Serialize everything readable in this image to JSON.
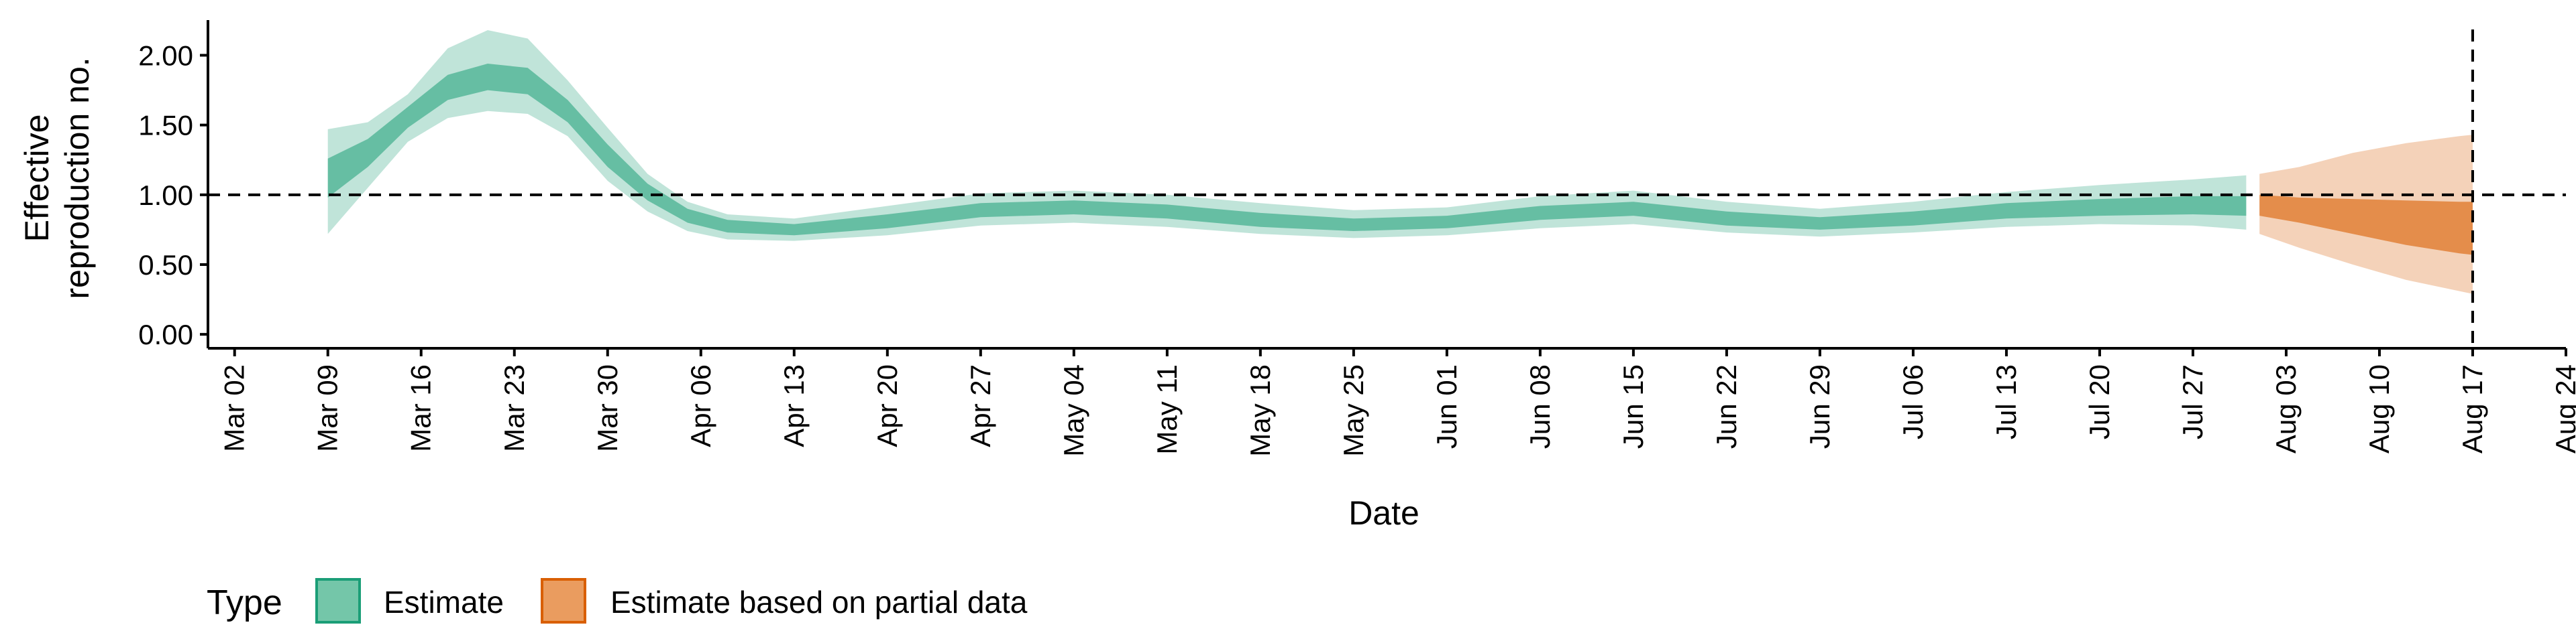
{
  "chart_data": {
    "type": "area",
    "xlabel": "Date",
    "ylabel_lines": [
      "Effective",
      "reproduction no."
    ],
    "x_range": [
      "2020-02-29",
      "2020-08-24"
    ],
    "ylim": [
      -0.1,
      2.3
    ],
    "y_ticks": [
      0,
      0.5,
      1,
      1.5,
      2
    ],
    "y_tick_labels": [
      "0.00",
      "0.50",
      "1.00",
      "1.50",
      "2.00"
    ],
    "x_ticks": [
      "2020-03-02",
      "2020-03-09",
      "2020-03-16",
      "2020-03-23",
      "2020-03-30",
      "2020-04-06",
      "2020-04-13",
      "2020-04-20",
      "2020-04-27",
      "2020-05-04",
      "2020-05-11",
      "2020-05-18",
      "2020-05-25",
      "2020-06-01",
      "2020-06-08",
      "2020-06-15",
      "2020-06-22",
      "2020-06-29",
      "2020-07-06",
      "2020-07-13",
      "2020-07-20",
      "2020-07-27",
      "2020-08-03",
      "2020-08-10",
      "2020-08-17",
      "2020-08-24"
    ],
    "x_tick_labels": [
      "Mar 02",
      "Mar 09",
      "Mar 16",
      "Mar 23",
      "Mar 30",
      "Apr 06",
      "Apr 13",
      "Apr 20",
      "Apr 27",
      "May 04",
      "May 11",
      "May 18",
      "May 25",
      "Jun 01",
      "Jun 08",
      "Jun 15",
      "Jun 22",
      "Jun 29",
      "Jul 06",
      "Jul 13",
      "Jul 20",
      "Jul 27",
      "Aug 03",
      "Aug 10",
      "Aug 17",
      "Aug 24"
    ],
    "reference_hline": 1.0,
    "reference_vline": "2020-08-17",
    "grid": false,
    "legend_placement": "bottom-left",
    "legend_title": "Type",
    "series": [
      {
        "name": "Estimate",
        "color_fill": "#1b9e77",
        "points": [
          {
            "x": "2020-03-09",
            "median": 1.1,
            "lo50": 0.98,
            "hi50": 1.26,
            "lo90": 0.72,
            "hi90": 1.47
          },
          {
            "x": "2020-03-12",
            "median": 1.3,
            "lo50": 1.2,
            "hi50": 1.4,
            "lo90": 1.05,
            "hi90": 1.52
          },
          {
            "x": "2020-03-15",
            "median": 1.55,
            "lo50": 1.48,
            "hi50": 1.63,
            "lo90": 1.38,
            "hi90": 1.72
          },
          {
            "x": "2020-03-18",
            "median": 1.76,
            "lo50": 1.68,
            "hi50": 1.86,
            "lo90": 1.55,
            "hi90": 2.05
          },
          {
            "x": "2020-03-21",
            "median": 1.85,
            "lo50": 1.75,
            "hi50": 1.94,
            "lo90": 1.6,
            "hi90": 2.18
          },
          {
            "x": "2020-03-24",
            "median": 1.82,
            "lo50": 1.72,
            "hi50": 1.91,
            "lo90": 1.58,
            "hi90": 2.12
          },
          {
            "x": "2020-03-27",
            "median": 1.6,
            "lo50": 1.52,
            "hi50": 1.68,
            "lo90": 1.42,
            "hi90": 1.82
          },
          {
            "x": "2020-03-30",
            "median": 1.28,
            "lo50": 1.2,
            "hi50": 1.36,
            "lo90": 1.1,
            "hi90": 1.48
          },
          {
            "x": "2020-04-02",
            "median": 1.02,
            "lo50": 0.96,
            "hi50": 1.08,
            "lo90": 0.88,
            "hi90": 1.15
          },
          {
            "x": "2020-04-05",
            "median": 0.85,
            "lo50": 0.8,
            "hi50": 0.9,
            "lo90": 0.74,
            "hi90": 0.95
          },
          {
            "x": "2020-04-08",
            "median": 0.77,
            "lo50": 0.73,
            "hi50": 0.82,
            "lo90": 0.68,
            "hi90": 0.86
          },
          {
            "x": "2020-04-13",
            "median": 0.75,
            "lo50": 0.71,
            "hi50": 0.79,
            "lo90": 0.67,
            "hi90": 0.83
          },
          {
            "x": "2020-04-20",
            "median": 0.81,
            "lo50": 0.76,
            "hi50": 0.86,
            "lo90": 0.71,
            "hi90": 0.92
          },
          {
            "x": "2020-04-27",
            "median": 0.89,
            "lo50": 0.84,
            "hi50": 0.94,
            "lo90": 0.78,
            "hi90": 1.01
          },
          {
            "x": "2020-05-04",
            "median": 0.91,
            "lo50": 0.86,
            "hi50": 0.96,
            "lo90": 0.8,
            "hi90": 1.03
          },
          {
            "x": "2020-05-11",
            "median": 0.88,
            "lo50": 0.83,
            "hi50": 0.93,
            "lo90": 0.77,
            "hi90": 1.0
          },
          {
            "x": "2020-05-18",
            "median": 0.82,
            "lo50": 0.77,
            "hi50": 0.87,
            "lo90": 0.72,
            "hi90": 0.94
          },
          {
            "x": "2020-05-25",
            "median": 0.78,
            "lo50": 0.74,
            "hi50": 0.83,
            "lo90": 0.69,
            "hi90": 0.89
          },
          {
            "x": "2020-06-01",
            "median": 0.8,
            "lo50": 0.76,
            "hi50": 0.85,
            "lo90": 0.71,
            "hi90": 0.91
          },
          {
            "x": "2020-06-08",
            "median": 0.87,
            "lo50": 0.82,
            "hi50": 0.92,
            "lo90": 0.76,
            "hi90": 0.99
          },
          {
            "x": "2020-06-15",
            "median": 0.9,
            "lo50": 0.85,
            "hi50": 0.95,
            "lo90": 0.79,
            "hi90": 1.03
          },
          {
            "x": "2020-06-22",
            "median": 0.83,
            "lo50": 0.78,
            "hi50": 0.88,
            "lo90": 0.73,
            "hi90": 0.95
          },
          {
            "x": "2020-06-29",
            "median": 0.79,
            "lo50": 0.75,
            "hi50": 0.84,
            "lo90": 0.7,
            "hi90": 0.9
          },
          {
            "x": "2020-07-06",
            "median": 0.83,
            "lo50": 0.78,
            "hi50": 0.88,
            "lo90": 0.73,
            "hi90": 0.95
          },
          {
            "x": "2020-07-13",
            "median": 0.88,
            "lo50": 0.83,
            "hi50": 0.94,
            "lo90": 0.77,
            "hi90": 1.02
          },
          {
            "x": "2020-07-20",
            "median": 0.91,
            "lo50": 0.85,
            "hi50": 0.97,
            "lo90": 0.79,
            "hi90": 1.07
          },
          {
            "x": "2020-07-27",
            "median": 0.92,
            "lo50": 0.86,
            "hi50": 0.99,
            "lo90": 0.78,
            "hi90": 1.11
          },
          {
            "x": "2020-07-31",
            "median": 0.92,
            "lo50": 0.85,
            "hi50": 0.99,
            "lo90": 0.75,
            "hi90": 1.14
          }
        ]
      },
      {
        "name": "Estimate based on partial data",
        "color_fill": "#d95f02",
        "points": [
          {
            "x": "2020-08-01",
            "median": 0.92,
            "lo50": 0.85,
            "hi50": 1.0,
            "lo90": 0.72,
            "hi90": 1.15
          },
          {
            "x": "2020-08-04",
            "median": 0.89,
            "lo50": 0.8,
            "hi50": 0.98,
            "lo90": 0.62,
            "hi90": 1.2
          },
          {
            "x": "2020-08-08",
            "median": 0.85,
            "lo50": 0.72,
            "hi50": 0.97,
            "lo90": 0.5,
            "hi90": 1.3
          },
          {
            "x": "2020-08-12",
            "median": 0.8,
            "lo50": 0.64,
            "hi50": 0.96,
            "lo90": 0.39,
            "hi90": 1.37
          },
          {
            "x": "2020-08-16",
            "median": 0.76,
            "lo50": 0.58,
            "hi50": 0.95,
            "lo90": 0.31,
            "hi90": 1.42
          },
          {
            "x": "2020-08-17",
            "median": 0.75,
            "lo50": 0.57,
            "hi50": 0.95,
            "lo90": 0.29,
            "hi90": 1.43
          }
        ]
      }
    ]
  }
}
